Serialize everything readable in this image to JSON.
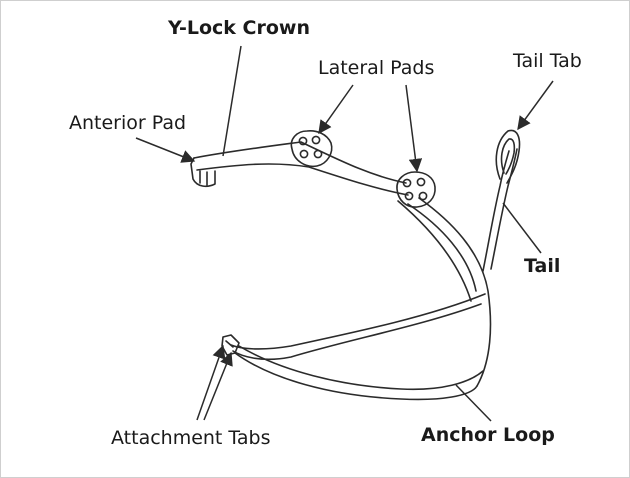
{
  "labels": {
    "y_lock_crown": "Y-Lock Crown",
    "lateral_pads": "Lateral Pads",
    "tail_tab": "Tail Tab",
    "anterior_pad": "Anterior Pad",
    "tail": "Tail",
    "attachment_tabs": "Attachment Tabs",
    "anchor_loop": "Anchor Loop"
  },
  "colors": {
    "line": "#2b2b2b",
    "background": "#ffffff",
    "text": "#1a1a1a"
  }
}
